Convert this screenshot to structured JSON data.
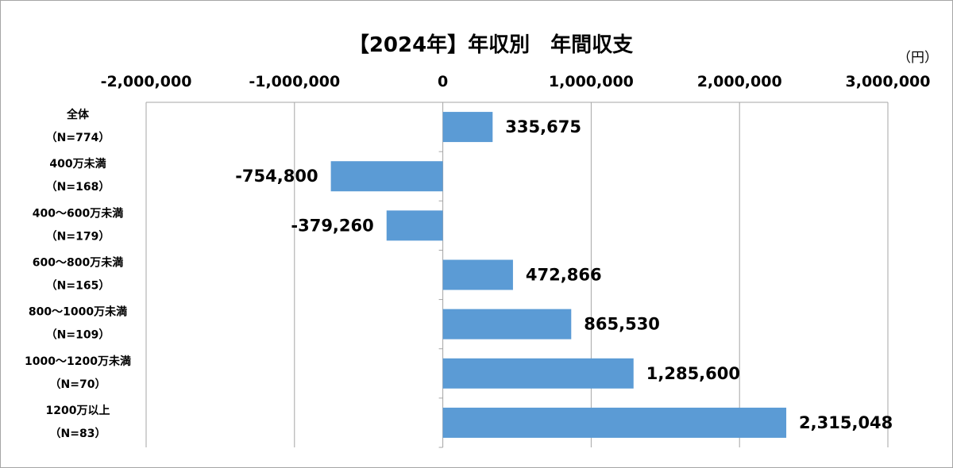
{
  "chart_data": {
    "type": "bar",
    "orientation": "horizontal",
    "title": "【2024年】年収別　年間収支",
    "unit": "（円）",
    "categories": [
      {
        "name": "全体",
        "n": "（N=774）"
      },
      {
        "name": "400万未満",
        "n": "（N=168）"
      },
      {
        "name": "400～600万未満",
        "n": "（N=179）"
      },
      {
        "name": "600～800万未満",
        "n": "（N=165）"
      },
      {
        "name": "800～1000万未満",
        "n": "（N=109）"
      },
      {
        "name": "1000～1200万未満",
        "n": "（N=70）"
      },
      {
        "name": "1200万以上",
        "n": "（N=83）"
      }
    ],
    "values": [
      335675,
      -754800,
      -379260,
      472866,
      865530,
      1285600,
      2315048
    ],
    "value_labels": [
      "335,675",
      "-754,800",
      "-379,260",
      "472,866",
      "865,530",
      "1,285,600",
      "2,315,048"
    ],
    "xlim": [
      -2000000,
      3000000
    ],
    "ticks": [
      {
        "value": -2000000,
        "label": "-2,000,000"
      },
      {
        "value": -1000000,
        "label": "-1,000,000"
      },
      {
        "value": 0,
        "label": "0"
      },
      {
        "value": 1000000,
        "label": "1,000,000"
      },
      {
        "value": 2000000,
        "label": "2,000,000"
      },
      {
        "value": 3000000,
        "label": "3,000,000"
      }
    ],
    "axis_position": "top",
    "grid": true,
    "bar_color": "#5b9bd5",
    "grid_color": "#a6a6a6"
  }
}
